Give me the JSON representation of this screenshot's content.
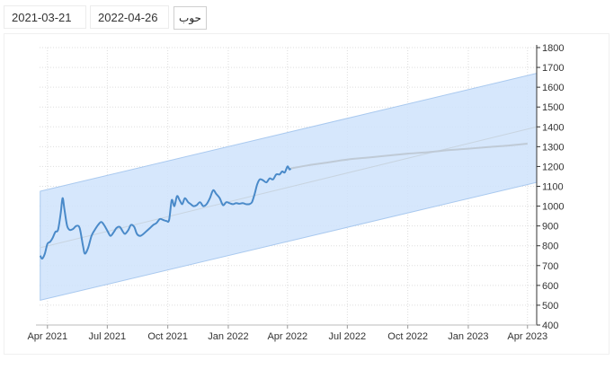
{
  "toolbar": {
    "from_date": "2021-03-21",
    "to_date": "2022-04-26",
    "go_label": "حوب"
  },
  "chart_data": {
    "type": "line",
    "title": "",
    "xlabel": "",
    "ylabel": "",
    "ylim": [
      400,
      1800
    ],
    "y_ticks": [
      400,
      500,
      600,
      700,
      800,
      900,
      1000,
      1100,
      1200,
      1300,
      1400,
      1500,
      1600,
      1700,
      1800
    ],
    "y_tick_labels": [
      "400",
      "500",
      "600",
      "700",
      "800",
      "900",
      "1000",
      "1100",
      "1200",
      "1300",
      "1400",
      "1500",
      "1600",
      "1700",
      "1800"
    ],
    "x_ticks": [
      "2021-04-01",
      "2021-07-01",
      "2021-10-01",
      "2022-01-01",
      "2022-04-01",
      "2022-07-01",
      "2022-10-01",
      "2023-01-01",
      "2023-04-01"
    ],
    "x_tick_labels": [
      "Apr 2021",
      "Jul 2021",
      "Oct 2021",
      "Jan 2022",
      "Apr 2022",
      "Jul 2022",
      "Oct 2022",
      "Jan 2023",
      "Apr 2023"
    ],
    "x_range": [
      "2021-03-20",
      "2023-04-15"
    ],
    "grid": true,
    "legend": "none",
    "colors": {
      "price": "#4a8ac9",
      "forecast": "#bfcad6",
      "trend": "#c8d4e0",
      "band": "#cfe3fb",
      "band_edge": "#a9c9ef"
    },
    "series": [
      {
        "role": "price",
        "points": [
          [
            "2021-03-21",
            750
          ],
          [
            "2021-03-24",
            735
          ],
          [
            "2021-03-28",
            760
          ],
          [
            "2021-04-01",
            810
          ],
          [
            "2021-04-05",
            820
          ],
          [
            "2021-04-09",
            840
          ],
          [
            "2021-04-13",
            870
          ],
          [
            "2021-04-17",
            880
          ],
          [
            "2021-04-21",
            960
          ],
          [
            "2021-04-24",
            1040
          ],
          [
            "2021-04-27",
            980
          ],
          [
            "2021-05-01",
            900
          ],
          [
            "2021-05-05",
            880
          ],
          [
            "2021-05-10",
            885
          ],
          [
            "2021-05-15",
            900
          ],
          [
            "2021-05-20",
            890
          ],
          [
            "2021-05-25",
            800
          ],
          [
            "2021-05-28",
            760
          ],
          [
            "2021-06-02",
            790
          ],
          [
            "2021-06-07",
            850
          ],
          [
            "2021-06-12",
            880
          ],
          [
            "2021-06-17",
            905
          ],
          [
            "2021-06-22",
            920
          ],
          [
            "2021-06-27",
            900
          ],
          [
            "2021-07-02",
            870
          ],
          [
            "2021-07-06",
            850
          ],
          [
            "2021-07-11",
            870
          ],
          [
            "2021-07-15",
            890
          ],
          [
            "2021-07-20",
            895
          ],
          [
            "2021-07-25",
            870
          ],
          [
            "2021-07-28",
            860
          ],
          [
            "2021-08-02",
            880
          ],
          [
            "2021-08-06",
            905
          ],
          [
            "2021-08-11",
            895
          ],
          [
            "2021-08-15",
            860
          ],
          [
            "2021-08-20",
            850
          ],
          [
            "2021-08-25",
            860
          ],
          [
            "2021-08-30",
            875
          ],
          [
            "2021-09-04",
            890
          ],
          [
            "2021-09-09",
            905
          ],
          [
            "2021-09-14",
            915
          ],
          [
            "2021-09-19",
            935
          ],
          [
            "2021-09-24",
            930
          ],
          [
            "2021-09-29",
            925
          ],
          [
            "2021-10-03",
            930
          ],
          [
            "2021-10-07",
            1030
          ],
          [
            "2021-10-11",
            1000
          ],
          [
            "2021-10-15",
            1050
          ],
          [
            "2021-10-19",
            1030
          ],
          [
            "2021-10-23",
            1010
          ],
          [
            "2021-10-27",
            1040
          ],
          [
            "2021-11-01",
            1020
          ],
          [
            "2021-11-05",
            1010
          ],
          [
            "2021-11-09",
            1000
          ],
          [
            "2021-11-14",
            1005
          ],
          [
            "2021-11-19",
            1020
          ],
          [
            "2021-11-24",
            1000
          ],
          [
            "2021-11-29",
            1010
          ],
          [
            "2021-12-04",
            1040
          ],
          [
            "2021-12-09",
            1080
          ],
          [
            "2021-12-14",
            1060
          ],
          [
            "2021-12-19",
            1040
          ],
          [
            "2021-12-24",
            1005
          ],
          [
            "2021-12-29",
            1020
          ],
          [
            "2022-01-03",
            1015
          ],
          [
            "2022-01-08",
            1010
          ],
          [
            "2022-01-13",
            1015
          ],
          [
            "2022-01-18",
            1012
          ],
          [
            "2022-01-23",
            1015
          ],
          [
            "2022-01-28",
            1010
          ],
          [
            "2022-02-02",
            1010
          ],
          [
            "2022-02-06",
            1020
          ],
          [
            "2022-02-10",
            1060
          ],
          [
            "2022-02-14",
            1110
          ],
          [
            "2022-02-18",
            1135
          ],
          [
            "2022-02-23",
            1130
          ],
          [
            "2022-02-28",
            1120
          ],
          [
            "2022-03-05",
            1140
          ],
          [
            "2022-03-10",
            1135
          ],
          [
            "2022-03-15",
            1160
          ],
          [
            "2022-03-20",
            1160
          ],
          [
            "2022-03-24",
            1175
          ],
          [
            "2022-03-28",
            1170
          ],
          [
            "2022-04-01",
            1200
          ],
          [
            "2022-04-04",
            1185
          ],
          [
            "2022-04-06",
            1190
          ]
        ]
      },
      {
        "role": "forecast",
        "points": [
          [
            "2022-04-06",
            1190
          ],
          [
            "2022-05-01",
            1205
          ],
          [
            "2022-06-01",
            1220
          ],
          [
            "2022-07-01",
            1235
          ],
          [
            "2022-08-01",
            1245
          ],
          [
            "2022-09-01",
            1255
          ],
          [
            "2022-10-01",
            1265
          ],
          [
            "2022-11-01",
            1272
          ],
          [
            "2022-12-01",
            1282
          ],
          [
            "2023-01-01",
            1290
          ],
          [
            "2023-02-01",
            1298
          ],
          [
            "2023-03-01",
            1305
          ],
          [
            "2023-04-01",
            1315
          ]
        ]
      },
      {
        "role": "trend",
        "points": [
          [
            "2021-03-21",
            790
          ],
          [
            "2023-04-15",
            1400
          ]
        ]
      },
      {
        "role": "band-upper",
        "points": [
          [
            "2021-03-21",
            1075
          ],
          [
            "2023-04-15",
            1670
          ]
        ]
      },
      {
        "role": "band-lower",
        "points": [
          [
            "2021-03-21",
            525
          ],
          [
            "2023-04-15",
            1120
          ]
        ]
      }
    ]
  }
}
